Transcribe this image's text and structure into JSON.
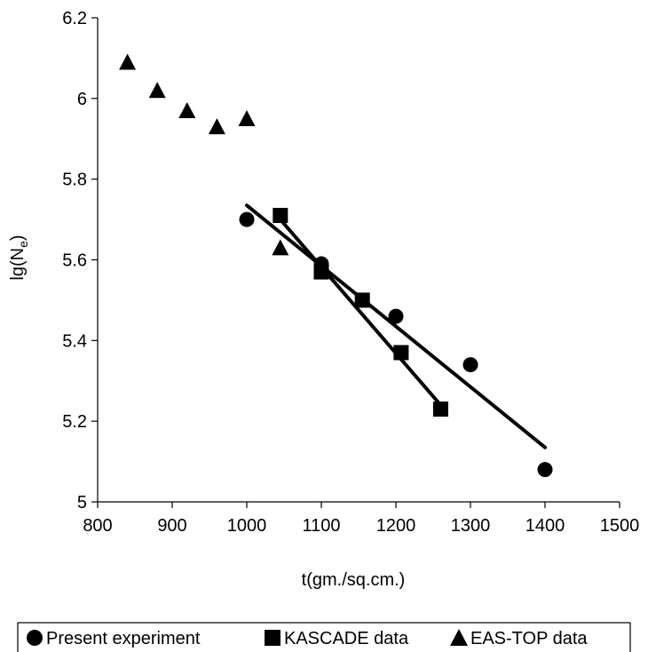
{
  "chart_data": {
    "type": "scatter",
    "xlabel": "t(gm./sq.cm.)",
    "ylabel": {
      "main": "lg(N",
      "sub": "e",
      "close": ")"
    },
    "xlim": [
      800,
      1500
    ],
    "ylim": [
      5,
      6.2
    ],
    "xticks": [
      "800",
      "900",
      "1000",
      "1100",
      "1200",
      "1300",
      "1400",
      "1500"
    ],
    "yticks": [
      "5",
      "5.2",
      "5.4",
      "5.6",
      "5.8",
      "6",
      "6.2"
    ],
    "grid": false,
    "legend_position": "bottom",
    "series": [
      {
        "name": "Present experiment",
        "marker": "circle",
        "points": [
          [
            1000,
            5.7
          ],
          [
            1100,
            5.59
          ],
          [
            1200,
            5.46
          ],
          [
            1300,
            5.34
          ],
          [
            1400,
            5.08
          ]
        ],
        "trendline": [
          [
            1000,
            5.735
          ],
          [
            1400,
            5.135
          ]
        ]
      },
      {
        "name": "KASCADE data",
        "marker": "square",
        "points": [
          [
            1045,
            5.71
          ],
          [
            1100,
            5.57
          ],
          [
            1155,
            5.5
          ],
          [
            1207,
            5.37
          ],
          [
            1260,
            5.23
          ]
        ],
        "trendline": [
          [
            1045,
            5.7
          ],
          [
            1260,
            5.24
          ]
        ]
      },
      {
        "name": "EAS-TOP data",
        "marker": "triangle",
        "points": [
          [
            840,
            6.09
          ],
          [
            880,
            6.02
          ],
          [
            920,
            5.97
          ],
          [
            960,
            5.93
          ],
          [
            1000,
            5.95
          ],
          [
            1045,
            5.63
          ]
        ]
      }
    ],
    "colors": {
      "marker": "#000000",
      "line": "#000000",
      "axis": "#000000"
    }
  }
}
